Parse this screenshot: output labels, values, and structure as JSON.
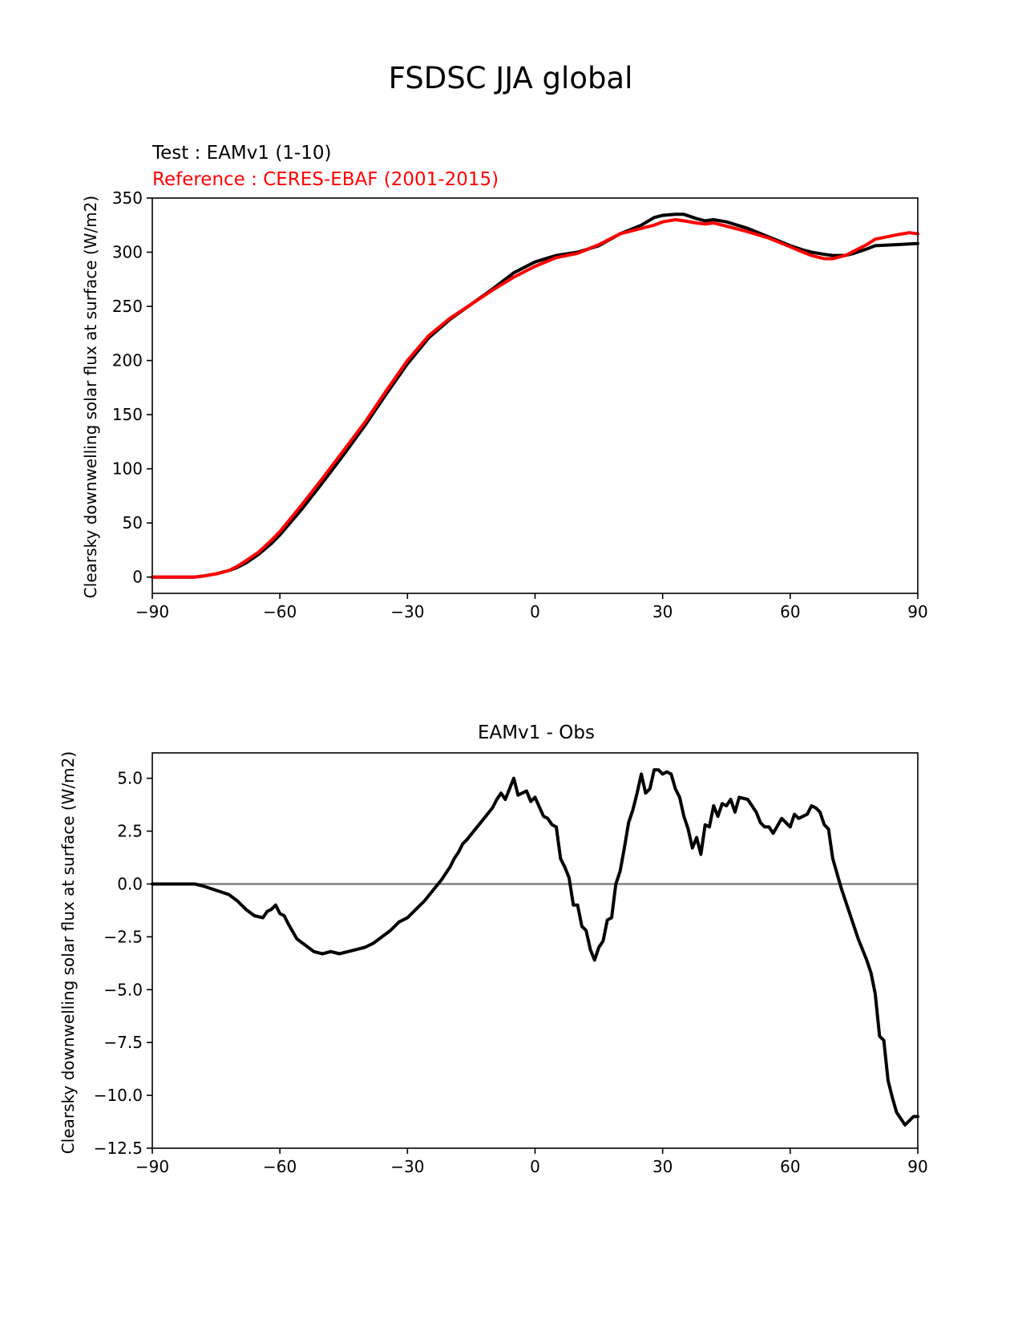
{
  "figure": {
    "suptitle": "FSDSC JJA global"
  },
  "chart_data": [
    {
      "type": "line",
      "test_label": "Test : EAMv1 (1-10)",
      "reference_label": "Reference : CERES-EBAF (2001-2015)",
      "ylabel": "Clearsky downwelling solar flux at surface (W/m2)",
      "xlim": [
        -90,
        90
      ],
      "ylim": [
        -15,
        350
      ],
      "xticks": [
        -90,
        -60,
        -30,
        0,
        30,
        60,
        90
      ],
      "xtick_labels": [
        "−90",
        "−60",
        "−30",
        "0",
        "30",
        "60",
        "90"
      ],
      "yticks": [
        0,
        50,
        100,
        150,
        200,
        250,
        300,
        350
      ],
      "ytick_labels": [
        "0",
        "50",
        "100",
        "150",
        "200",
        "250",
        "300",
        "350"
      ],
      "series": [
        {
          "color": "#000000",
          "x": [
            -90,
            -85,
            -80,
            -78,
            -75,
            -72,
            -70,
            -68,
            -65,
            -62,
            -60,
            -55,
            -50,
            -45,
            -40,
            -35,
            -30,
            -25,
            -20,
            -15,
            -10,
            -5,
            0,
            5,
            10,
            15,
            20,
            25,
            28,
            30,
            33,
            35,
            38,
            40,
            42,
            45,
            50,
            55,
            60,
            63,
            65,
            68,
            70,
            73,
            75,
            78,
            80,
            85,
            90
          ],
          "y": [
            0,
            0,
            0,
            1,
            3,
            6,
            9,
            13,
            21,
            31,
            39,
            62,
            87,
            113,
            140,
            169,
            197,
            221,
            238,
            252,
            266,
            281,
            291,
            297,
            300,
            306,
            317,
            325,
            332,
            334,
            335,
            335,
            331,
            329,
            330,
            328,
            322,
            314,
            306,
            302,
            300,
            298,
            297,
            297,
            299,
            303,
            306,
            307,
            308
          ]
        },
        {
          "color": "#ff0000",
          "x": [
            -90,
            -85,
            -80,
            -78,
            -75,
            -72,
            -70,
            -68,
            -65,
            -62,
            -60,
            -55,
            -50,
            -45,
            -40,
            -35,
            -30,
            -25,
            -20,
            -15,
            -10,
            -5,
            0,
            5,
            10,
            15,
            20,
            25,
            28,
            30,
            33,
            35,
            38,
            40,
            42,
            45,
            50,
            55,
            60,
            63,
            65,
            68,
            70,
            73,
            75,
            78,
            80,
            85,
            88,
            90
          ],
          "y": [
            0,
            0,
            0,
            1,
            3,
            6,
            10,
            15,
            23,
            34,
            42,
            66,
            91,
            117,
            143,
            172,
            200,
            223,
            239,
            252,
            265,
            277,
            287,
            295,
            299,
            307,
            317,
            322,
            325,
            328,
            330,
            329,
            327,
            326,
            327,
            324,
            319,
            313,
            305,
            300,
            297,
            294,
            294,
            297,
            301,
            307,
            312,
            316,
            318,
            317
          ]
        }
      ]
    },
    {
      "type": "line",
      "title": "EAMv1 - Obs",
      "ylabel": "Clearsky downwelling solar flux at surface (W/m2)",
      "xlim": [
        -90,
        90
      ],
      "ylim": [
        -12.5,
        6.2
      ],
      "xticks": [
        -90,
        -60,
        -30,
        0,
        30,
        60,
        90
      ],
      "xtick_labels": [
        "−90",
        "−60",
        "−30",
        "0",
        "30",
        "60",
        "90"
      ],
      "yticks": [
        5.0,
        2.5,
        0.0,
        -2.5,
        -5.0,
        -7.5,
        -10.0,
        -12.5
      ],
      "ytick_labels": [
        "5.0",
        "2.5",
        "0.0",
        "−2.5",
        "−5.0",
        "−7.5",
        "−10.0",
        "−12.5"
      ],
      "zero_line_color": "#808080",
      "series": [
        {
          "color": "#000000",
          "x": [
            -90,
            -85,
            -80,
            -78,
            -75,
            -72,
            -70,
            -68,
            -66,
            -64,
            -63,
            -62,
            -61,
            -60,
            -59,
            -58,
            -56,
            -54,
            -52,
            -50,
            -48,
            -46,
            -44,
            -42,
            -40,
            -38,
            -36,
            -34,
            -32,
            -30,
            -28,
            -26,
            -24,
            -22,
            -21,
            -20,
            -19,
            -18,
            -17,
            -16,
            -14,
            -12,
            -10,
            -9,
            -8,
            -7,
            -5,
            -4,
            -3,
            -2,
            -1,
            0,
            2,
            3,
            4,
            5,
            6,
            7,
            8,
            9,
            10,
            11,
            12,
            13,
            14,
            15,
            16,
            17,
            18,
            19,
            20,
            21,
            22,
            23,
            24,
            25,
            26,
            27,
            28,
            29,
            30,
            31,
            32,
            33,
            34,
            35,
            36,
            37,
            38,
            39,
            40,
            41,
            42,
            43,
            44,
            45,
            46,
            47,
            48,
            50,
            52,
            53,
            54,
            55,
            56,
            58,
            60,
            61,
            62,
            63,
            64,
            65,
            66,
            67,
            68,
            69,
            70,
            72,
            74,
            76,
            78,
            79,
            80,
            81,
            82,
            83,
            84,
            85,
            86,
            87,
            88,
            89,
            90
          ],
          "y": [
            0.0,
            0.0,
            0.0,
            -0.1,
            -0.3,
            -0.5,
            -0.8,
            -1.2,
            -1.5,
            -1.6,
            -1.3,
            -1.2,
            -1.0,
            -1.4,
            -1.5,
            -1.9,
            -2.6,
            -2.9,
            -3.2,
            -3.3,
            -3.2,
            -3.3,
            -3.2,
            -3.1,
            -3.0,
            -2.8,
            -2.5,
            -2.2,
            -1.8,
            -1.6,
            -1.2,
            -0.8,
            -0.3,
            0.2,
            0.5,
            0.8,
            1.2,
            1.5,
            1.9,
            2.1,
            2.6,
            3.1,
            3.6,
            4.0,
            4.3,
            4.0,
            5.0,
            4.2,
            4.3,
            4.4,
            3.9,
            4.1,
            3.2,
            3.1,
            2.8,
            2.7,
            1.2,
            0.8,
            0.3,
            -1.0,
            -1.0,
            -2.0,
            -2.2,
            -3.1,
            -3.6,
            -3.0,
            -2.7,
            -1.7,
            -1.6,
            0.0,
            0.6,
            1.7,
            2.9,
            3.5,
            4.3,
            5.2,
            4.3,
            4.5,
            5.4,
            5.4,
            5.2,
            5.3,
            5.2,
            4.5,
            4.1,
            3.2,
            2.6,
            1.7,
            2.2,
            1.4,
            2.8,
            2.7,
            3.7,
            3.2,
            3.8,
            3.7,
            4.0,
            3.4,
            4.1,
            4.0,
            3.4,
            2.9,
            2.7,
            2.7,
            2.4,
            3.1,
            2.7,
            3.3,
            3.1,
            3.2,
            3.3,
            3.7,
            3.6,
            3.4,
            2.8,
            2.6,
            1.2,
            -0.2,
            -1.4,
            -2.6,
            -3.6,
            -4.2,
            -5.2,
            -7.2,
            -7.4,
            -9.3,
            -10.1,
            -10.8,
            -11.1,
            -11.4,
            -11.2,
            -11.0,
            -11.0
          ]
        }
      ]
    }
  ]
}
